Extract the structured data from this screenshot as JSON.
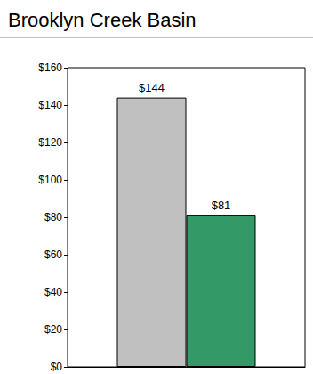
{
  "chart_data": {
    "type": "bar",
    "title": "Brooklyn Creek Basin",
    "categories": [
      null
    ],
    "series": [
      {
        "color": "#c0c0c0",
        "values": [
          144
        ],
        "value_labels": [
          "$144"
        ]
      },
      {
        "color": "#339966",
        "values": [
          81
        ],
        "value_labels": [
          "$81"
        ]
      }
    ],
    "ylim": [
      0,
      160
    ],
    "yticks": [
      {
        "value": 0,
        "label": "$0"
      },
      {
        "value": 20,
        "label": "$20"
      },
      {
        "value": 40,
        "label": "$40"
      },
      {
        "value": 60,
        "label": "$60"
      },
      {
        "value": 80,
        "label": "$80"
      },
      {
        "value": 100,
        "label": "$100"
      },
      {
        "value": 120,
        "label": "$120"
      },
      {
        "value": 140,
        "label": "$140"
      },
      {
        "value": 160,
        "label": "$160"
      }
    ],
    "grid": false,
    "data_labels": true,
    "tick_labels": "y"
  }
}
